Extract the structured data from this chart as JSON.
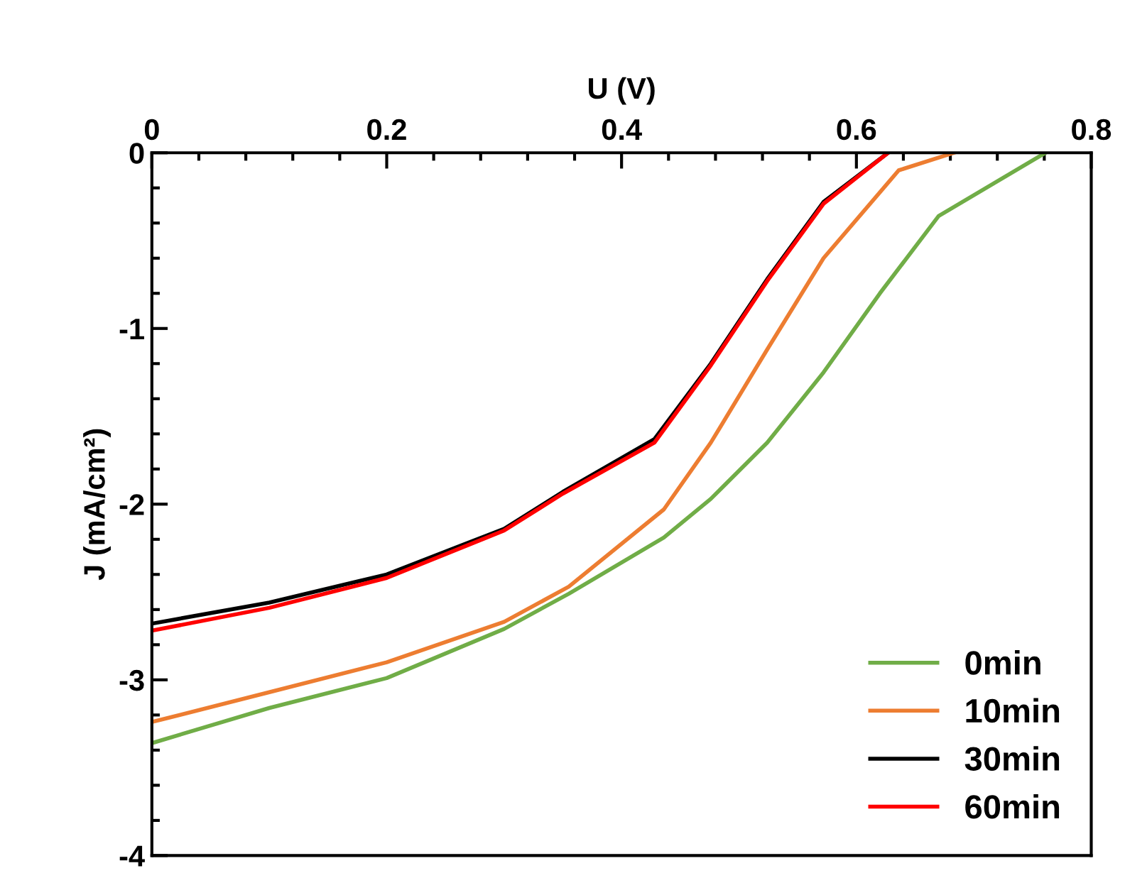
{
  "chart_data": {
    "type": "line",
    "xlabel": "U (V)",
    "ylabel": "J (mA/cm²)",
    "xlim": [
      0,
      0.8
    ],
    "xticks": [
      0,
      0.2,
      0.4,
      0.6,
      0.8
    ],
    "ylim": [
      -4,
      0
    ],
    "yticks": [
      -4,
      -3,
      -2,
      -1,
      0
    ],
    "grid": false,
    "legend": "bottom right",
    "marker": "none",
    "line_style": "solid",
    "series": [
      {
        "name": "0min",
        "color": "#70ad47",
        "x": [
          0,
          0.1,
          0.2,
          0.3,
          0.355,
          0.436,
          0.476,
          0.524,
          0.572,
          0.62,
          0.67,
          0.761
        ],
        "values": [
          -3.36,
          -3.16,
          -2.99,
          -2.71,
          -2.51,
          -2.19,
          -1.97,
          -1.65,
          -1.25,
          -0.8,
          -0.36,
          0
        ]
      },
      {
        "name": "10min",
        "color": "#ed7d31",
        "x": [
          0,
          0.1,
          0.2,
          0.3,
          0.355,
          0.436,
          0.476,
          0.524,
          0.572,
          0.636,
          0.683
        ],
        "values": [
          -3.24,
          -3.07,
          -2.9,
          -2.67,
          -2.47,
          -2.03,
          -1.65,
          -1.12,
          -0.6,
          -0.1,
          0
        ]
      },
      {
        "name": "30min",
        "color": "#000000",
        "x": [
          0,
          0.1,
          0.2,
          0.3,
          0.35,
          0.428,
          0.476,
          0.524,
          0.572,
          0.627
        ],
        "values": [
          -2.68,
          -2.56,
          -2.4,
          -2.14,
          -1.93,
          -1.63,
          -1.2,
          -0.72,
          -0.28,
          0
        ]
      },
      {
        "name": "60min",
        "color": "#ff0000",
        "x": [
          0,
          0.1,
          0.2,
          0.3,
          0.35,
          0.428,
          0.476,
          0.524,
          0.572,
          0.627
        ],
        "values": [
          -2.72,
          -2.59,
          -2.42,
          -2.15,
          -1.94,
          -1.65,
          -1.21,
          -0.73,
          -0.29,
          0
        ]
      }
    ]
  }
}
